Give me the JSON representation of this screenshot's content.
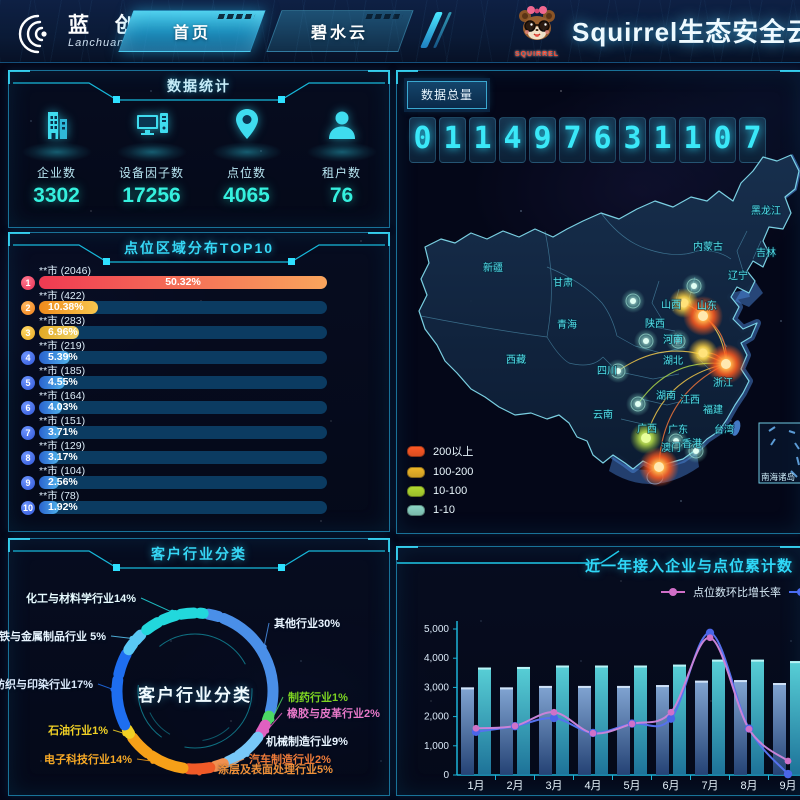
{
  "header": {
    "logo_text": "蓝 创",
    "logo_subtext": "Lanchuang",
    "tabs": [
      {
        "label": "首页",
        "active": true
      },
      {
        "label": "碧水云",
        "active": false
      }
    ],
    "mascot_caption": "SQUIRREL",
    "app_title": "Squirrel生态安全云平台"
  },
  "stats": {
    "title": "数据统计",
    "items": [
      {
        "icon": "building-icon",
        "label": "企业数",
        "value": "3302"
      },
      {
        "icon": "device-monitor-icon",
        "label": "设备因子数",
        "value": "17256"
      },
      {
        "icon": "location-pin-icon",
        "label": "点位数",
        "value": "4065"
      },
      {
        "icon": "user-icon",
        "label": "租户数",
        "value": "76"
      }
    ]
  },
  "top10": {
    "title": "点位区域分布TOP10"
  },
  "industry": {
    "title": "客户行业分类",
    "center_label": "客户行业分类",
    "segments": [
      {
        "name": "其他行业",
        "percent": 30,
        "label": "其他行业30%",
        "color": "#4a8fe8",
        "label_color": "#eaf4ff"
      },
      {
        "name": "制药行业",
        "percent": 1,
        "label": "制药行业1%",
        "color": "#4cd964",
        "label_color": "#7ed321"
      },
      {
        "name": "橡胶与皮革行业",
        "percent": 2,
        "label": "橡胶与皮革行业2%",
        "color": "#e060c0",
        "label_color": "#e878c8"
      },
      {
        "name": "机械制造行业",
        "percent": 9,
        "label": "机械制造行业9%",
        "color": "#78c8f8",
        "label_color": "#eaf4ff"
      },
      {
        "name": "汽车制造行业",
        "percent": 2,
        "label": "汽车制造行业2%",
        "color": "#f09050",
        "label_color": "#f07a38"
      },
      {
        "name": "涂层及表面处理行业",
        "percent": 5,
        "label": "涂层及表面处理行业5%",
        "color": "#f05a28",
        "label_color": "#f09038"
      },
      {
        "name": "电子科技行业",
        "percent": 14,
        "label": "电子科技行业14%",
        "color": "#f6a018",
        "label_color": "#f8a825"
      },
      {
        "name": "石油行业",
        "percent": 1,
        "label": "石油行业1%",
        "color": "#f2d024",
        "label_color": "#f2d024"
      },
      {
        "name": "纺织与印染行业",
        "percent": 17,
        "label": "纺织与印染行业17%",
        "color": "#1e6ef0",
        "label_color": "#dceafc"
      },
      {
        "name": "钢铁与金属制品行业",
        "percent": 5,
        "label": "钢铁与金属制品行业 5%",
        "color": "#5ac8f5",
        "label_color": "#e8f4ff"
      },
      {
        "name": "化工与材料学行业",
        "percent": 14,
        "label": "化工与材料学行业14%",
        "color": "#22d8dc",
        "label_color": "#e8fbff"
      }
    ]
  },
  "map": {
    "badge_label": "数据总量",
    "total_value": "011497631107",
    "legend": [
      {
        "label": "200以上",
        "color": "#ff5a26"
      },
      {
        "label": "100-200",
        "color": "#f0b82a"
      },
      {
        "label": "10-100",
        "color": "#b4dc32"
      },
      {
        "label": "1-10",
        "color": "#8ed8c8"
      }
    ],
    "inset_label": "南海诸岛",
    "provinces": [
      "新疆",
      "西藏",
      "青海",
      "甘肃",
      "内蒙古",
      "黑龙江",
      "吉林",
      "辽宁",
      "山东",
      "山西",
      "陕西",
      "河南",
      "湖北",
      "四川",
      "云南",
      "湖南",
      "江西",
      "浙江",
      "福建",
      "台湾",
      "广东",
      "广西",
      "香港",
      "澳门"
    ]
  },
  "trend": {
    "title": "近一年接入企业与点位累计数",
    "legend": [
      {
        "label": "点位数环比增长率",
        "color": "#d06fc8"
      },
      {
        "label": "",
        "color": "#4a6cf0",
        "clipped": true
      }
    ]
  },
  "chart_data": [
    {
      "id": "top10",
      "type": "bar",
      "orientation": "horizontal",
      "title": "点位区域分布TOP10",
      "categories": [
        "**市 (2046)",
        "**市 (422)",
        "**市 (283)",
        "**市 (219)",
        "**市 (185)",
        "**市 (164)",
        "**市 (151)",
        "**市 (129)",
        "**市 (104)",
        "**市 (78)"
      ],
      "values": [
        50.32,
        10.38,
        6.96,
        5.39,
        4.55,
        4.03,
        3.71,
        3.17,
        2.56,
        1.92
      ],
      "percent_labels": [
        "50.32%",
        "10.38%",
        "6.96%",
        "5.39%",
        "4.55%",
        "4.03%",
        "3.71%",
        "3.17%",
        "2.56%",
        "1.92%"
      ],
      "unit": "%",
      "bar_scale_max": 50.32
    },
    {
      "id": "industry",
      "type": "pie",
      "title": "客户行业分类",
      "labels": [
        "其他行业",
        "制药行业",
        "橡胶与皮革行业",
        "机械制造行业",
        "汽车制造行业",
        "涂层及表面处理行业",
        "电子科技行业",
        "石油行业",
        "纺织与印染行业",
        "钢铁与金属制品行业",
        "化工与材料学行业"
      ],
      "values": [
        30,
        1,
        2,
        9,
        2,
        5,
        14,
        1,
        17,
        5,
        14
      ]
    },
    {
      "id": "trend",
      "type": "bar+line",
      "title": "近一年接入企业与点位累计数",
      "x": [
        "1月",
        "2月",
        "3月",
        "4月",
        "5月",
        "6月",
        "7月",
        "8月",
        "9月"
      ],
      "ylim": [
        0,
        5000
      ],
      "y_tick_labels": [
        "0",
        "1,000",
        "2,000",
        "3,000",
        "4,000",
        "5,000"
      ],
      "legend_position": "top-right",
      "series": [
        {
          "name": "bar_series_1",
          "type": "bar",
          "values": [
            3000,
            3000,
            3050,
            3050,
            3050,
            3080,
            3230,
            3250,
            3150
          ]
        },
        {
          "name": "bar_series_2",
          "type": "bar",
          "values": [
            3680,
            3700,
            3750,
            3750,
            3750,
            3780,
            3950,
            3950,
            3900
          ]
        },
        {
          "name": "点位数环比增长率",
          "type": "line",
          "values": [
            1600,
            1680,
            2150,
            1430,
            1750,
            2150,
            4700,
            1570,
            480
          ]
        },
        {
          "name": "line_series_2",
          "type": "line",
          "values": [
            1480,
            1670,
            1950,
            1440,
            1760,
            1930,
            4870,
            1590,
            30
          ]
        }
      ]
    }
  ]
}
